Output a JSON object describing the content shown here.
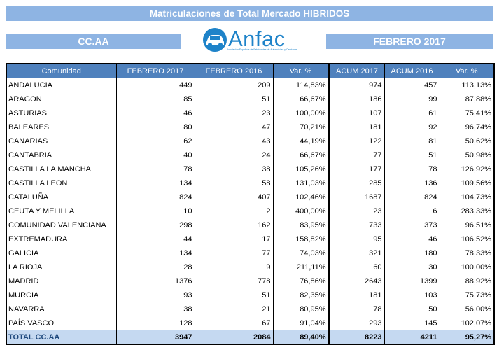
{
  "title": "Matriculaciones de Total Mercado HIBRIDOS",
  "left_bar": "CC.AA",
  "right_bar": "FEBRERO 2017",
  "logo": {
    "text": "Anfac",
    "tagline": "Asociación Española de Fabricantes de Automóviles y Camiones",
    "icon": "car-logo-icon"
  },
  "table": {
    "headers": [
      "Comunidad",
      "FEBRERO  2017",
      "FEBRERO  2016",
      "Var. %",
      "ACUM 2017",
      "ACUM 2016",
      "Var. %"
    ],
    "rows": [
      [
        "ANDALUCIA",
        "449",
        "209",
        "114,83%",
        "974",
        "457",
        "113,13%"
      ],
      [
        "ARAGON",
        "85",
        "51",
        "66,67%",
        "186",
        "99",
        "87,88%"
      ],
      [
        "ASTURIAS",
        "46",
        "23",
        "100,00%",
        "107",
        "61",
        "75,41%"
      ],
      [
        "BALEARES",
        "80",
        "47",
        "70,21%",
        "181",
        "92",
        "96,74%"
      ],
      [
        "CANARIAS",
        "62",
        "43",
        "44,19%",
        "122",
        "81",
        "50,62%"
      ],
      [
        "CANTABRIA",
        "40",
        "24",
        "66,67%",
        "77",
        "51",
        "50,98%"
      ],
      [
        "CASTILLA LA MANCHA",
        "78",
        "38",
        "105,26%",
        "177",
        "78",
        "126,92%"
      ],
      [
        "CASTILLA LEON",
        "134",
        "58",
        "131,03%",
        "285",
        "136",
        "109,56%"
      ],
      [
        "CATALUÑA",
        "824",
        "407",
        "102,46%",
        "1687",
        "824",
        "104,73%"
      ],
      [
        "CEUTA Y MELILLA",
        "10",
        "2",
        "400,00%",
        "23",
        "6",
        "283,33%"
      ],
      [
        "COMUNIDAD VALENCIANA",
        "298",
        "162",
        "83,95%",
        "733",
        "373",
        "96,51%"
      ],
      [
        "EXTREMADURA",
        "44",
        "17",
        "158,82%",
        "95",
        "46",
        "106,52%"
      ],
      [
        "GALICIA",
        "134",
        "77",
        "74,03%",
        "321",
        "180",
        "78,33%"
      ],
      [
        "LA RIOJA",
        "28",
        "9",
        "211,11%",
        "60",
        "30",
        "100,00%"
      ],
      [
        "MADRID",
        "1376",
        "778",
        "76,86%",
        "2643",
        "1399",
        "88,92%"
      ],
      [
        "MURCIA",
        "93",
        "51",
        "82,35%",
        "181",
        "103",
        "75,73%"
      ],
      [
        "NAVARRA",
        "38",
        "21",
        "80,95%",
        "78",
        "50",
        "56,00%"
      ],
      [
        "PAÍS VASCO",
        "128",
        "67",
        "91,04%",
        "293",
        "145",
        "102,07%"
      ]
    ],
    "total": [
      "TOTAL CC.AA",
      "3947",
      "2084",
      "89,40%",
      "8223",
      "4211",
      "95,27%"
    ]
  }
}
